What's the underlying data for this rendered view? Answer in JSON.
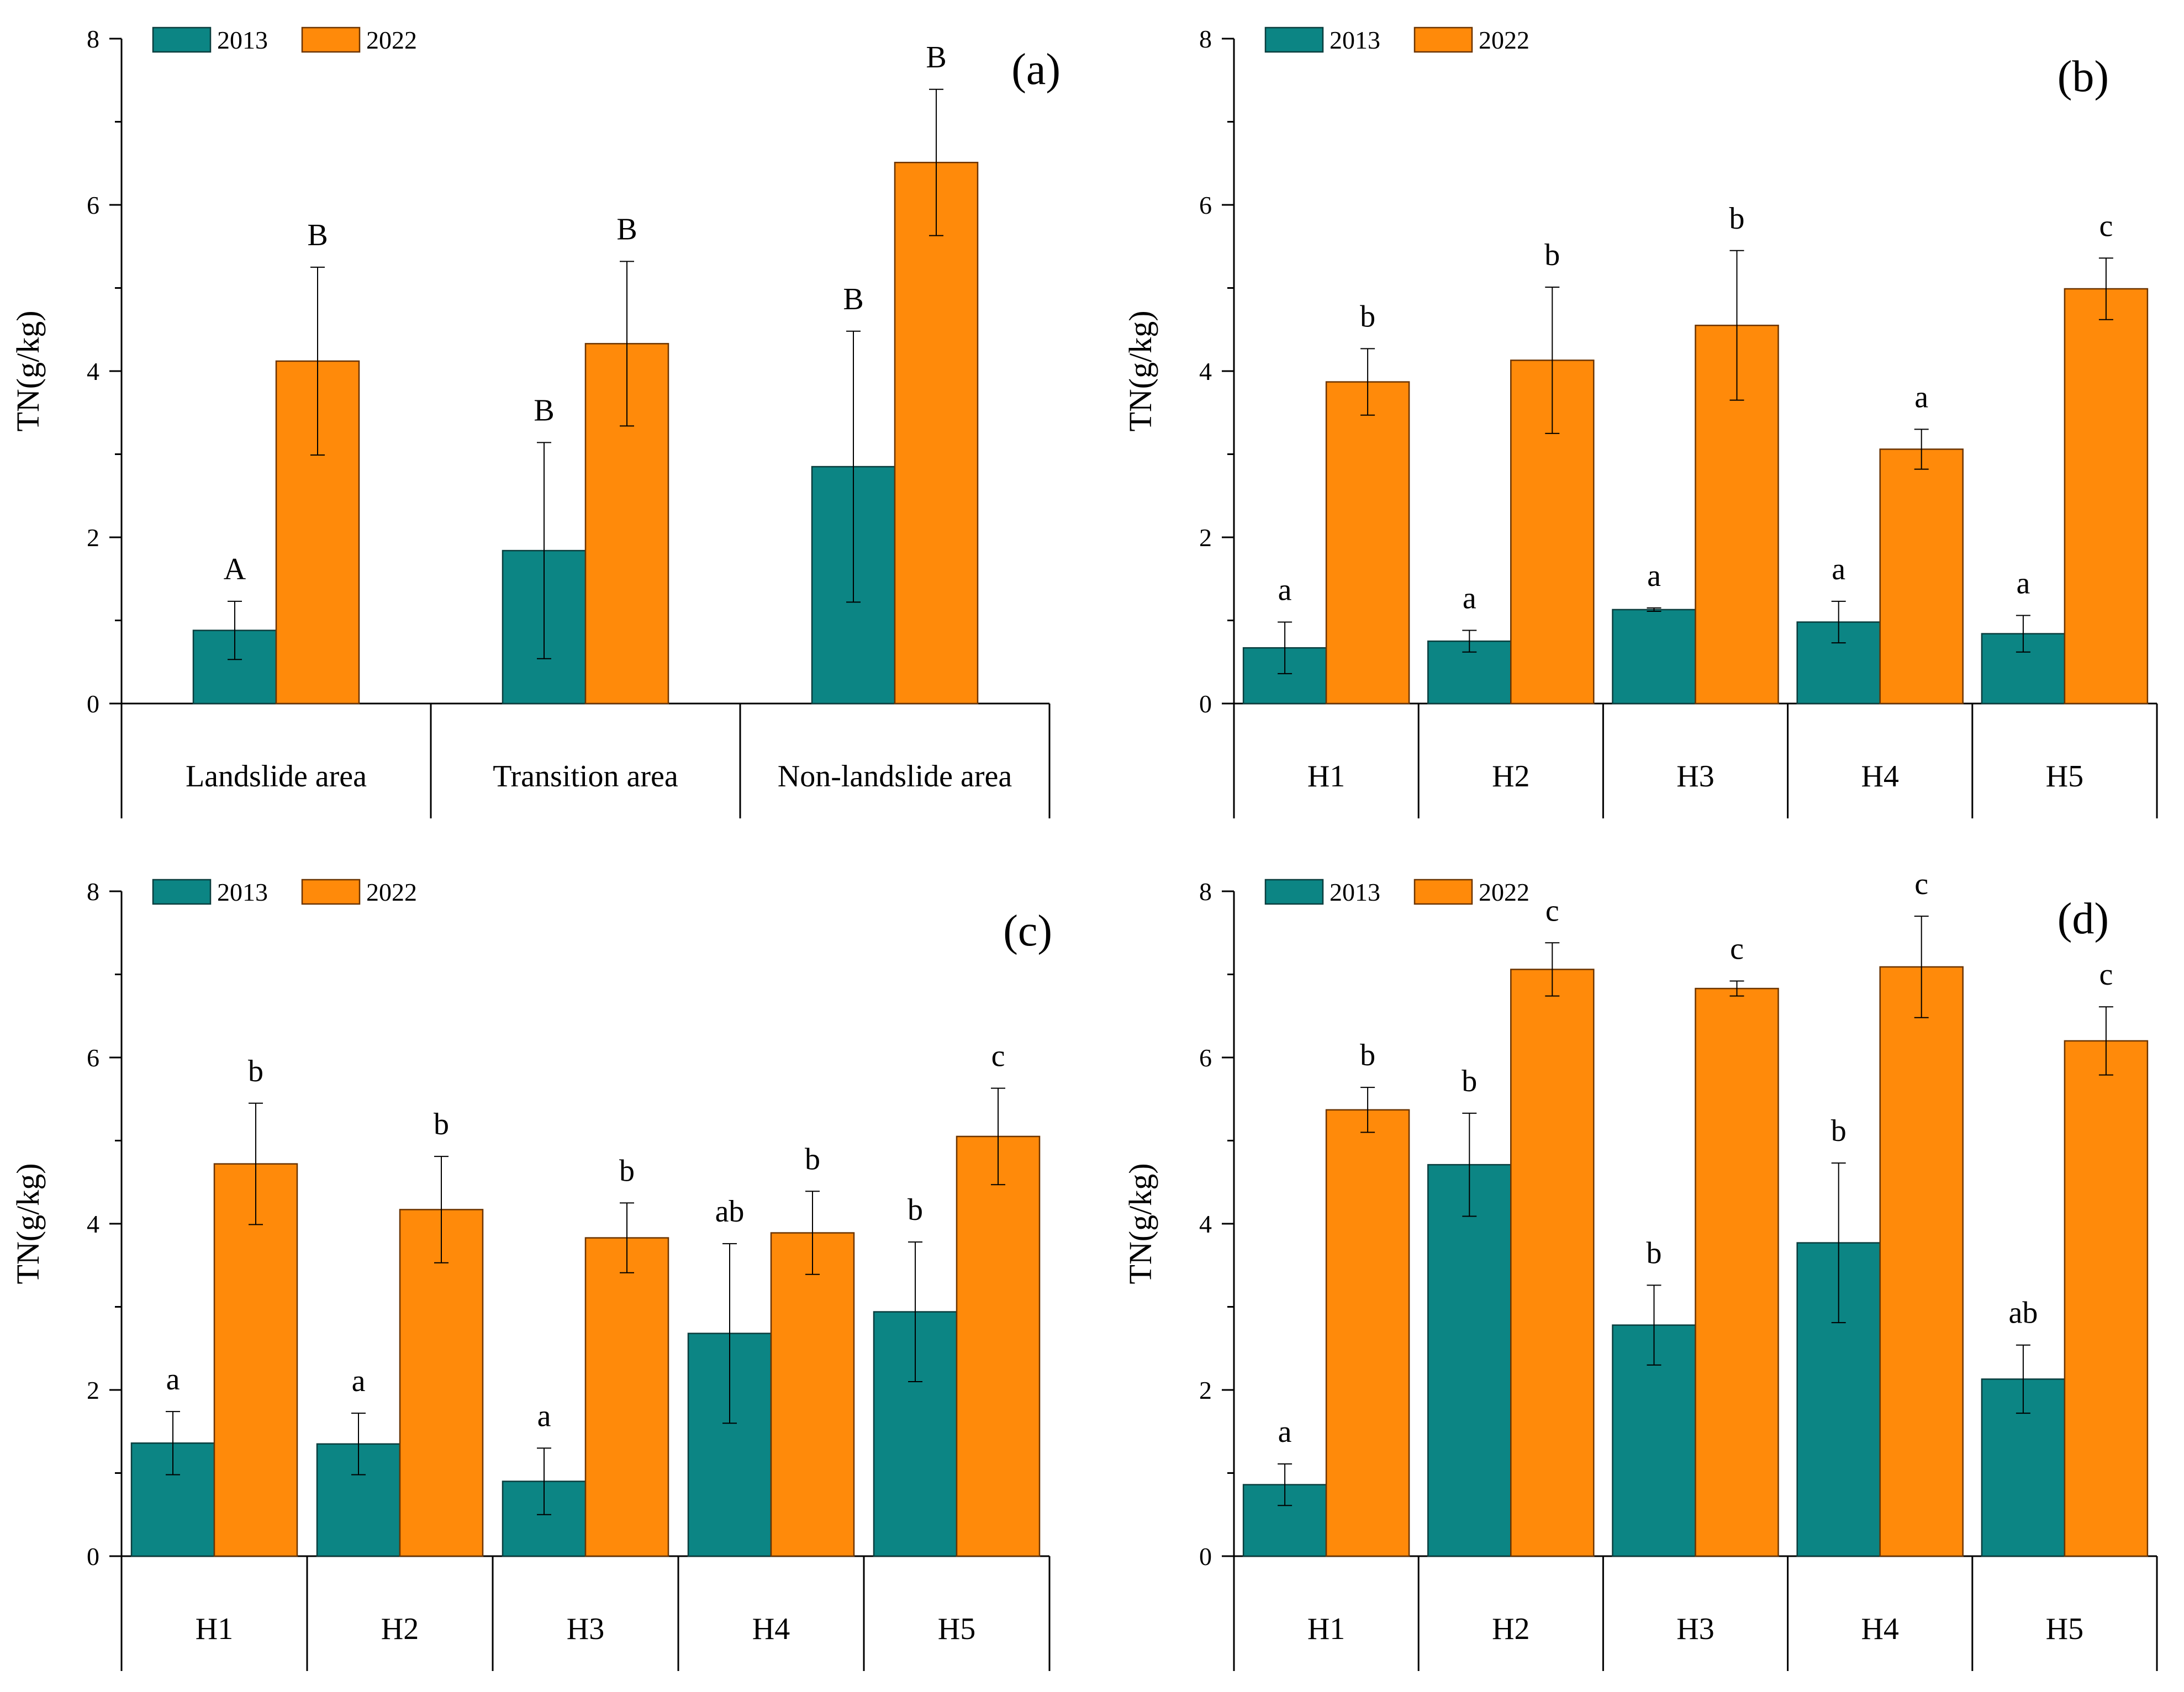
{
  "figure": {
    "description_label": "TN content comparison 2013 vs 2022"
  },
  "colors": {
    "teal": "#0c8584",
    "teal_stroke": "#0a3d3d",
    "orange": "#ff8a0a",
    "orange_stroke": "#6b3400",
    "axis": "#000000"
  },
  "legend": {
    "items": [
      "2013",
      "2022"
    ]
  },
  "chart_data": [
    {
      "type": "bar",
      "panel_label": "(a)",
      "ylabel": "TN(g/kg)",
      "ylim": [
        0,
        8
      ],
      "yticks": [
        "0",
        "2",
        "4",
        "6",
        "8"
      ],
      "categories": [
        "Landslide area",
        "Transition area",
        "Non-landslide area"
      ],
      "series": [
        {
          "name": "2013",
          "values": [
            0.88,
            1.84,
            2.85
          ],
          "errors": [
            0.35,
            1.3,
            1.63
          ],
          "letters": [
            "A",
            "B",
            "B"
          ]
        },
        {
          "name": "2022",
          "values": [
            4.12,
            4.33,
            6.51
          ],
          "errors": [
            1.13,
            0.99,
            0.88
          ],
          "letters": [
            "B",
            "B",
            "B"
          ]
        }
      ]
    },
    {
      "type": "bar",
      "panel_label": "(b)",
      "ylabel": "TN(g/kg)",
      "ylim": [
        0,
        8
      ],
      "yticks": [
        "0",
        "2",
        "4",
        "6",
        "8"
      ],
      "categories": [
        "H1",
        "H2",
        "H3",
        "H4",
        "H5"
      ],
      "series": [
        {
          "name": "2013",
          "values": [
            0.67,
            0.75,
            1.13,
            0.98,
            0.84
          ],
          "errors": [
            0.31,
            0.13,
            0.02,
            0.25,
            0.22
          ],
          "letters": [
            "a",
            "a",
            "a",
            "a",
            "a"
          ]
        },
        {
          "name": "2022",
          "values": [
            3.87,
            4.13,
            4.55,
            3.06,
            4.99
          ],
          "errors": [
            0.4,
            0.88,
            0.9,
            0.24,
            0.37
          ],
          "letters": [
            "b",
            "b",
            "b",
            "a",
            "c"
          ]
        }
      ]
    },
    {
      "type": "bar",
      "panel_label": "(c)",
      "ylabel": "TN(g/kg)",
      "ylim": [
        0,
        8
      ],
      "yticks": [
        "0",
        "2",
        "4",
        "6",
        "8"
      ],
      "categories": [
        "H1",
        "H2",
        "H3",
        "H4",
        "H5"
      ],
      "series": [
        {
          "name": "2013",
          "values": [
            1.36,
            1.35,
            0.9,
            2.68,
            2.94
          ],
          "errors": [
            0.38,
            0.37,
            0.4,
            1.08,
            0.84
          ],
          "letters": [
            "a",
            "a",
            "a",
            "ab",
            "b"
          ]
        },
        {
          "name": "2022",
          "values": [
            4.72,
            4.17,
            3.83,
            3.89,
            5.05
          ],
          "errors": [
            0.73,
            0.64,
            0.42,
            0.5,
            0.58
          ],
          "letters": [
            "b",
            "b",
            "b",
            "b",
            "c"
          ]
        }
      ]
    },
    {
      "type": "bar",
      "panel_label": "(d)",
      "ylabel": "TN(g/kg)",
      "ylim": [
        0,
        8
      ],
      "yticks": [
        "0",
        "2",
        "4",
        "6",
        "8"
      ],
      "categories": [
        "H1",
        "H2",
        "H3",
        "H4",
        "H5"
      ],
      "series": [
        {
          "name": "2013",
          "values": [
            0.86,
            4.71,
            2.78,
            3.77,
            2.13
          ],
          "errors": [
            0.25,
            0.62,
            0.48,
            0.96,
            0.41
          ],
          "letters": [
            "a",
            "b",
            "b",
            "b",
            "ab"
          ]
        },
        {
          "name": "2022",
          "values": [
            5.37,
            7.06,
            6.83,
            7.09,
            6.2
          ],
          "errors": [
            0.27,
            0.32,
            0.09,
            0.61,
            0.41
          ],
          "letters": [
            "b",
            "c",
            "c",
            "c",
            "c"
          ]
        }
      ]
    }
  ]
}
